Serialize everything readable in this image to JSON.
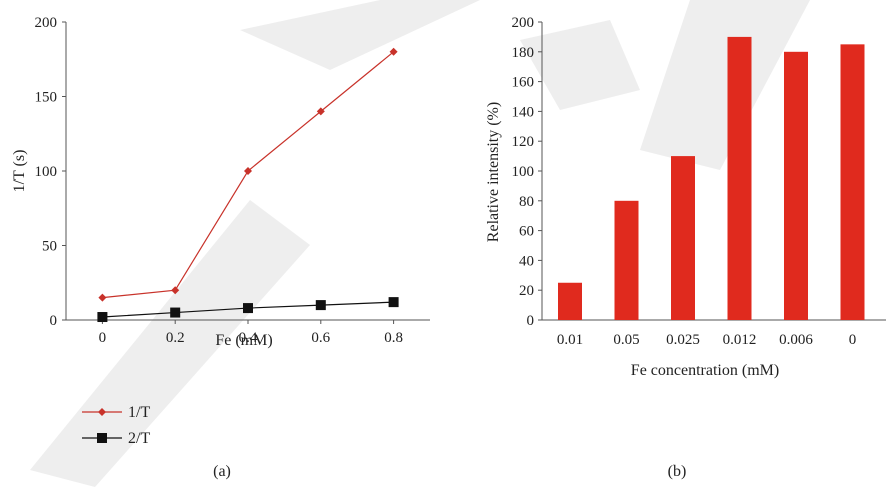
{
  "colors": {
    "series1": "#c8322a",
    "series2": "#111111",
    "bar": "#e02a1e",
    "axis": "#555555",
    "watermark": "#eeeeee"
  },
  "chart_data": [
    {
      "type": "line",
      "panel_label": "(a)",
      "xlabel": "Fe (mM)",
      "ylabel": "1/T (s)",
      "x": [
        0,
        0.2,
        0.4,
        0.6,
        0.8
      ],
      "x_tick_labels": [
        "0",
        "0.2",
        "0.4",
        "0.6",
        "0.8"
      ],
      "xlim": [
        -0.1,
        0.9
      ],
      "ylim": [
        0,
        200
      ],
      "y_ticks": [
        0,
        50,
        100,
        150,
        200
      ],
      "grid": false,
      "legend_position": "bottom-left",
      "series": [
        {
          "name": "1/T",
          "marker": "diamond",
          "values": [
            15,
            20,
            100,
            140,
            180
          ]
        },
        {
          "name": "2/T",
          "marker": "square",
          "values": [
            2,
            5,
            8,
            10,
            12
          ]
        }
      ]
    },
    {
      "type": "bar",
      "panel_label": "(b)",
      "xlabel": "Fe concentration (mM)",
      "ylabel": "Relative intensity (%)",
      "categories": [
        "0.01",
        "0.05",
        "0.025",
        "0.012",
        "0.006",
        "0"
      ],
      "values": [
        25,
        80,
        110,
        190,
        180,
        185
      ],
      "ylim": [
        0,
        200
      ],
      "y_ticks": [
        0,
        20,
        40,
        60,
        80,
        100,
        120,
        140,
        160,
        180,
        200
      ],
      "grid": false
    }
  ]
}
